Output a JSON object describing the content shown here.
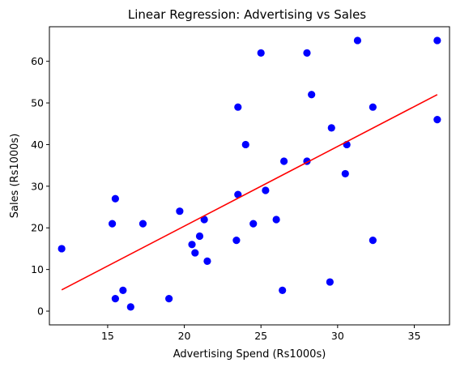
{
  "chart_data": {
    "type": "scatter",
    "title": "Linear Regression: Advertising vs Sales",
    "xlabel": "Advertising Spend (Rs1000s)",
    "ylabel": "Sales (Rs1000s)",
    "xlim": [
      11.2,
      37.3
    ],
    "ylim": [
      -3.3,
      68.3
    ],
    "xticks": [
      15,
      20,
      25,
      30,
      35
    ],
    "yticks": [
      0,
      10,
      20,
      30,
      40,
      50,
      60
    ],
    "grid": false,
    "point_color": "#0000ff",
    "line_color": "#ff0000",
    "points": [
      {
        "x": 12.0,
        "y": 15
      },
      {
        "x": 15.3,
        "y": 21
      },
      {
        "x": 15.5,
        "y": 27
      },
      {
        "x": 15.5,
        "y": 3
      },
      {
        "x": 16.0,
        "y": 5
      },
      {
        "x": 16.5,
        "y": 1
      },
      {
        "x": 17.3,
        "y": 21
      },
      {
        "x": 19.0,
        "y": 3
      },
      {
        "x": 19.7,
        "y": 24
      },
      {
        "x": 20.5,
        "y": 16
      },
      {
        "x": 20.7,
        "y": 14
      },
      {
        "x": 21.0,
        "y": 18
      },
      {
        "x": 21.3,
        "y": 22
      },
      {
        "x": 21.5,
        "y": 12
      },
      {
        "x": 23.4,
        "y": 17
      },
      {
        "x": 23.5,
        "y": 28
      },
      {
        "x": 23.5,
        "y": 49
      },
      {
        "x": 24.0,
        "y": 40
      },
      {
        "x": 24.5,
        "y": 21
      },
      {
        "x": 25.0,
        "y": 62
      },
      {
        "x": 25.3,
        "y": 29
      },
      {
        "x": 26.0,
        "y": 22
      },
      {
        "x": 26.4,
        "y": 5
      },
      {
        "x": 26.5,
        "y": 36
      },
      {
        "x": 28.0,
        "y": 62
      },
      {
        "x": 28.0,
        "y": 36
      },
      {
        "x": 28.3,
        "y": 52
      },
      {
        "x": 29.5,
        "y": 7
      },
      {
        "x": 29.6,
        "y": 44
      },
      {
        "x": 30.5,
        "y": 33
      },
      {
        "x": 30.6,
        "y": 40
      },
      {
        "x": 31.3,
        "y": 65
      },
      {
        "x": 32.3,
        "y": 49
      },
      {
        "x": 32.3,
        "y": 17
      },
      {
        "x": 36.5,
        "y": 65
      },
      {
        "x": 36.5,
        "y": 46
      }
    ],
    "regression_line": [
      {
        "x": 12.0,
        "y": 5.1
      },
      {
        "x": 36.5,
        "y": 52.0
      }
    ]
  }
}
